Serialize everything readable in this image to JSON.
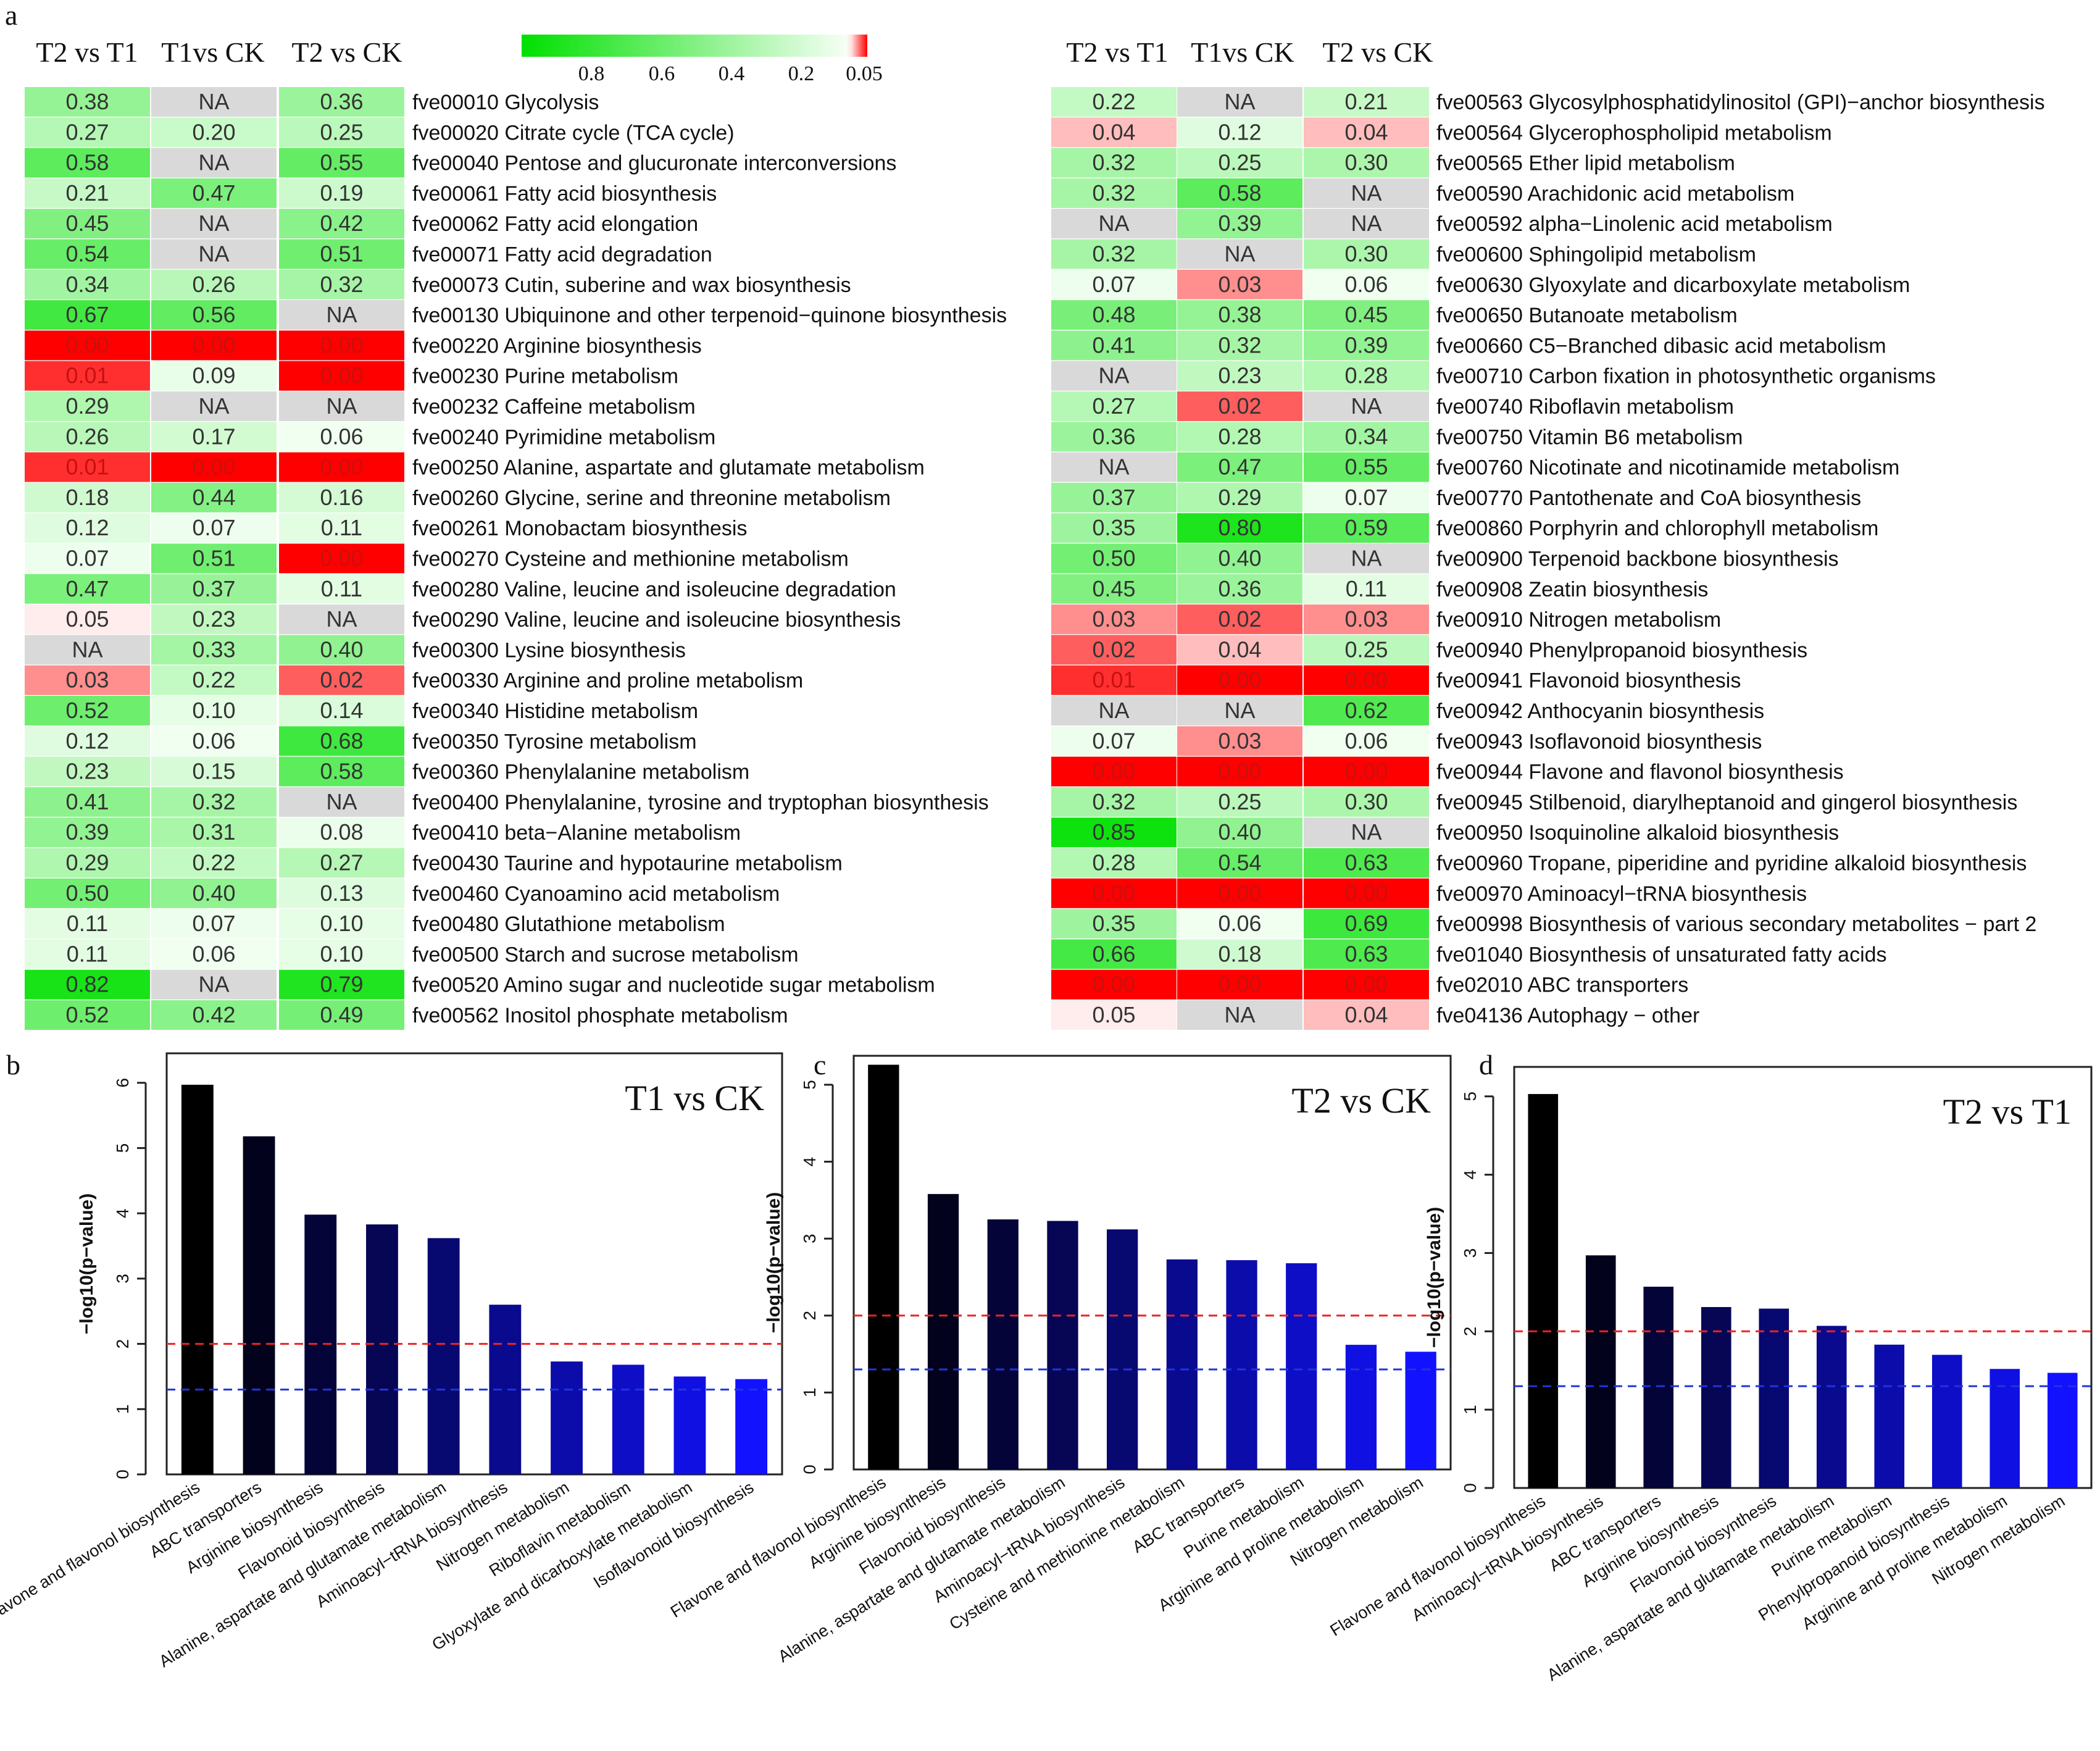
{
  "panel_labels": {
    "a": "a",
    "b": "b",
    "c": "c",
    "d": "d"
  },
  "heatmap": {
    "columns": [
      "T2 vs T1",
      "T1vs CK",
      "T2 vs CK"
    ],
    "legend": {
      "ticks": [
        "0.8",
        "0.6",
        "0.4",
        "0.2",
        "0.05"
      ],
      "low_color": "#ff0000",
      "high_color": "#00e000"
    },
    "na_label": "NA",
    "left": [
      {
        "p": "fve00010 Glycolysis",
        "v": [
          "0.38",
          "NA",
          "0.36"
        ]
      },
      {
        "p": "fve00020 Citrate cycle (TCA cycle)",
        "v": [
          "0.27",
          "0.20",
          "0.25"
        ]
      },
      {
        "p": "fve00040 Pentose and glucuronate interconversions",
        "v": [
          "0.58",
          "NA",
          "0.55"
        ]
      },
      {
        "p": "fve00061 Fatty acid biosynthesis",
        "v": [
          "0.21",
          "0.47",
          "0.19"
        ]
      },
      {
        "p": "fve00062 Fatty acid elongation",
        "v": [
          "0.45",
          "NA",
          "0.42"
        ]
      },
      {
        "p": "fve00071 Fatty acid degradation",
        "v": [
          "0.54",
          "NA",
          "0.51"
        ]
      },
      {
        "p": "fve00073 Cutin, suberine and wax biosynthesis",
        "v": [
          "0.34",
          "0.26",
          "0.32"
        ]
      },
      {
        "p": "fve00130 Ubiquinone and other terpenoid−quinone biosynthesis",
        "v": [
          "0.67",
          "0.56",
          "NA"
        ]
      },
      {
        "p": "fve00220 Arginine biosynthesis",
        "v": [
          "0.00",
          "0.00",
          "0.00"
        ]
      },
      {
        "p": "fve00230 Purine metabolism",
        "v": [
          "0.01",
          "0.09",
          "0.00"
        ]
      },
      {
        "p": "fve00232 Caffeine metabolism",
        "v": [
          "0.29",
          "NA",
          "NA"
        ]
      },
      {
        "p": "fve00240 Pyrimidine metabolism",
        "v": [
          "0.26",
          "0.17",
          "0.06"
        ]
      },
      {
        "p": "fve00250 Alanine, aspartate and glutamate metabolism",
        "v": [
          "0.01",
          "0.00",
          "0.00"
        ]
      },
      {
        "p": "fve00260 Glycine, serine and threonine metabolism",
        "v": [
          "0.18",
          "0.44",
          "0.16"
        ]
      },
      {
        "p": "fve00261 Monobactam biosynthesis",
        "v": [
          "0.12",
          "0.07",
          "0.11"
        ]
      },
      {
        "p": "fve00270 Cysteine and methionine metabolism",
        "v": [
          "0.07",
          "0.51",
          "0.00"
        ]
      },
      {
        "p": "fve00280 Valine, leucine and isoleucine degradation",
        "v": [
          "0.47",
          "0.37",
          "0.11"
        ]
      },
      {
        "p": "fve00290 Valine, leucine and isoleucine biosynthesis",
        "v": [
          "0.05",
          "0.23",
          "NA"
        ]
      },
      {
        "p": "fve00300 Lysine biosynthesis",
        "v": [
          "NA",
          "0.33",
          "0.40"
        ]
      },
      {
        "p": "fve00330 Arginine and proline metabolism",
        "v": [
          "0.03",
          "0.22",
          "0.02"
        ]
      },
      {
        "p": "fve00340 Histidine metabolism",
        "v": [
          "0.52",
          "0.10",
          "0.14"
        ]
      },
      {
        "p": "fve00350 Tyrosine metabolism",
        "v": [
          "0.12",
          "0.06",
          "0.68"
        ]
      },
      {
        "p": "fve00360 Phenylalanine metabolism",
        "v": [
          "0.23",
          "0.15",
          "0.58"
        ]
      },
      {
        "p": "fve00400 Phenylalanine, tyrosine and tryptophan biosynthesis",
        "v": [
          "0.41",
          "0.32",
          "NA"
        ]
      },
      {
        "p": "fve00410 beta−Alanine metabolism",
        "v": [
          "0.39",
          "0.31",
          "0.08"
        ]
      },
      {
        "p": "fve00430 Taurine and hypotaurine metabolism",
        "v": [
          "0.29",
          "0.22",
          "0.27"
        ]
      },
      {
        "p": "fve00460 Cyanoamino acid metabolism",
        "v": [
          "0.50",
          "0.40",
          "0.13"
        ]
      },
      {
        "p": "fve00480 Glutathione metabolism",
        "v": [
          "0.11",
          "0.07",
          "0.10"
        ]
      },
      {
        "p": "fve00500 Starch and sucrose metabolism",
        "v": [
          "0.11",
          "0.06",
          "0.10"
        ]
      },
      {
        "p": "fve00520 Amino sugar and nucleotide sugar metabolism",
        "v": [
          "0.82",
          "NA",
          "0.79"
        ]
      },
      {
        "p": "fve00562 Inositol phosphate metabolism",
        "v": [
          "0.52",
          "0.42",
          "0.49"
        ]
      }
    ],
    "right": [
      {
        "p": "fve00563 Glycosylphosphatidylinositol (GPI)−anchor biosynthesis",
        "v": [
          "0.22",
          "NA",
          "0.21"
        ]
      },
      {
        "p": "fve00564 Glycerophospholipid metabolism",
        "v": [
          "0.04",
          "0.12",
          "0.04"
        ]
      },
      {
        "p": "fve00565 Ether lipid metabolism",
        "v": [
          "0.32",
          "0.25",
          "0.30"
        ]
      },
      {
        "p": "fve00590 Arachidonic acid metabolism",
        "v": [
          "0.32",
          "0.58",
          "NA"
        ]
      },
      {
        "p": "fve00592 alpha−Linolenic acid metabolism",
        "v": [
          "NA",
          "0.39",
          "NA"
        ]
      },
      {
        "p": "fve00600 Sphingolipid metabolism",
        "v": [
          "0.32",
          "NA",
          "0.30"
        ]
      },
      {
        "p": "fve00630 Glyoxylate and dicarboxylate metabolism",
        "v": [
          "0.07",
          "0.03",
          "0.06"
        ]
      },
      {
        "p": "fve00650 Butanoate metabolism",
        "v": [
          "0.48",
          "0.38",
          "0.45"
        ]
      },
      {
        "p": "fve00660 C5−Branched dibasic acid metabolism",
        "v": [
          "0.41",
          "0.32",
          "0.39"
        ]
      },
      {
        "p": "fve00710 Carbon fixation in photosynthetic organisms",
        "v": [
          "NA",
          "0.23",
          "0.28"
        ]
      },
      {
        "p": "fve00740 Riboflavin metabolism",
        "v": [
          "0.27",
          "0.02",
          "NA"
        ]
      },
      {
        "p": "fve00750 Vitamin B6 metabolism",
        "v": [
          "0.36",
          "0.28",
          "0.34"
        ]
      },
      {
        "p": "fve00760 Nicotinate and nicotinamide metabolism",
        "v": [
          "NA",
          "0.47",
          "0.55"
        ]
      },
      {
        "p": "fve00770 Pantothenate and CoA biosynthesis",
        "v": [
          "0.37",
          "0.29",
          "0.07"
        ]
      },
      {
        "p": "fve00860 Porphyrin and chlorophyll metabolism",
        "v": [
          "0.35",
          "0.80",
          "0.59"
        ]
      },
      {
        "p": "fve00900 Terpenoid backbone biosynthesis",
        "v": [
          "0.50",
          "0.40",
          "NA"
        ]
      },
      {
        "p": "fve00908 Zeatin biosynthesis",
        "v": [
          "0.45",
          "0.36",
          "0.11"
        ]
      },
      {
        "p": "fve00910 Nitrogen metabolism",
        "v": [
          "0.03",
          "0.02",
          "0.03"
        ]
      },
      {
        "p": "fve00940 Phenylpropanoid biosynthesis",
        "v": [
          "0.02",
          "0.04",
          "0.25"
        ]
      },
      {
        "p": "fve00941 Flavonoid biosynthesis",
        "v": [
          "0.01",
          "0.00",
          "0.00"
        ]
      },
      {
        "p": "fve00942 Anthocyanin biosynthesis",
        "v": [
          "NA",
          "NA",
          "0.62"
        ]
      },
      {
        "p": "fve00943 Isoflavonoid biosynthesis",
        "v": [
          "0.07",
          "0.03",
          "0.06"
        ]
      },
      {
        "p": "fve00944 Flavone and flavonol biosynthesis",
        "v": [
          "0.00",
          "0.00",
          "0.00"
        ]
      },
      {
        "p": "fve00945 Stilbenoid, diarylheptanoid and gingerol biosynthesis",
        "v": [
          "0.32",
          "0.25",
          "0.30"
        ]
      },
      {
        "p": "fve00950 Isoquinoline alkaloid biosynthesis",
        "v": [
          "0.85",
          "0.40",
          "NA"
        ]
      },
      {
        "p": "fve00960 Tropane, piperidine and pyridine alkaloid biosynthesis",
        "v": [
          "0.28",
          "0.54",
          "0.63"
        ]
      },
      {
        "p": "fve00970 Aminoacyl−tRNA biosynthesis",
        "v": [
          "0.00",
          "0.00",
          "0.00"
        ]
      },
      {
        "p": "fve00998 Biosynthesis of various secondary metabolites − part 2",
        "v": [
          "0.35",
          "0.06",
          "0.69"
        ]
      },
      {
        "p": "fve01040 Biosynthesis of unsaturated fatty acids",
        "v": [
          "0.66",
          "0.18",
          "0.63"
        ]
      },
      {
        "p": "fve02010 ABC transporters",
        "v": [
          "0.00",
          "0.00",
          "0.00"
        ]
      },
      {
        "p": "fve04136 Autophagy − other",
        "v": [
          "0.05",
          "NA",
          "0.04"
        ]
      }
    ]
  },
  "chart_data": [
    {
      "type": "bar",
      "panel": "b",
      "title": "T1 vs CK",
      "ylabel": "−log10(p−value)",
      "ylim": [
        0,
        6
      ],
      "yticks": [
        "0",
        "1",
        "2",
        "3",
        "4",
        "5",
        "6"
      ],
      "thresholds": [
        {
          "value": 2,
          "color": "#ee2222"
        },
        {
          "value": 1.3,
          "color": "#2233dd"
        }
      ],
      "categories": [
        "Flavone and flavonol biosynthesis",
        "ABC transporters",
        "Arginine biosynthesis",
        "Flavonoid biosynthesis",
        "Alanine, aspartate and glutamate metabolism",
        "Aminoacyl−tRNA biosynthesis",
        "Nitrogen metabolism",
        "Riboflavin metabolism",
        "Glyoxylate and dicarboxylate metabolism",
        "Isoflavonoid biosynthesis"
      ],
      "values": [
        5.97,
        5.18,
        3.98,
        3.83,
        3.62,
        2.6,
        1.73,
        1.68,
        1.5,
        1.46
      ]
    },
    {
      "type": "bar",
      "panel": "c",
      "title": "T2 vs CK",
      "ylabel": "−log10(p−value)",
      "ylim": [
        0,
        5
      ],
      "yticks": [
        "0",
        "1",
        "2",
        "3",
        "4",
        "5"
      ],
      "thresholds": [
        {
          "value": 2,
          "color": "#ee2222"
        },
        {
          "value": 1.3,
          "color": "#2233dd"
        }
      ],
      "categories": [
        "Flavone and flavonol biosynthesis",
        "Arginine biosynthesis",
        "Flavonoid biosynthesis",
        "Alanine, aspartate and glutamate metabolism",
        "Aminoacyl−tRNA biosynthesis",
        "Cysteine and methionine metabolism",
        "ABC transporters",
        "Purine metabolism",
        "Arginine and proline metabolism",
        "Nitrogen metabolism"
      ],
      "values": [
        5.26,
        3.58,
        3.25,
        3.23,
        3.12,
        2.73,
        2.72,
        2.68,
        1.62,
        1.53
      ]
    },
    {
      "type": "bar",
      "panel": "d",
      "title": "T2 vs T1",
      "ylabel": "−log10(p−value)",
      "ylim": [
        0,
        5
      ],
      "yticks": [
        "0",
        "1",
        "2",
        "3",
        "4",
        "5"
      ],
      "thresholds": [
        {
          "value": 2,
          "color": "#ee2222"
        },
        {
          "value": 1.3,
          "color": "#2233dd"
        }
      ],
      "categories": [
        "Flavone and flavonol biosynthesis",
        "Aminoacyl−tRNA biosynthesis",
        "ABC transporters",
        "Arginine biosynthesis",
        "Flavonoid biosynthesis",
        "Alanine, aspartate and glutamate metabolism",
        "Purine metabolism",
        "Phenylpropanoid biosynthesis",
        "Arginine and proline metabolism",
        "Nitrogen metabolism"
      ],
      "values": [
        5.03,
        2.97,
        2.57,
        2.31,
        2.29,
        2.07,
        1.83,
        1.7,
        1.52,
        1.47
      ]
    }
  ]
}
